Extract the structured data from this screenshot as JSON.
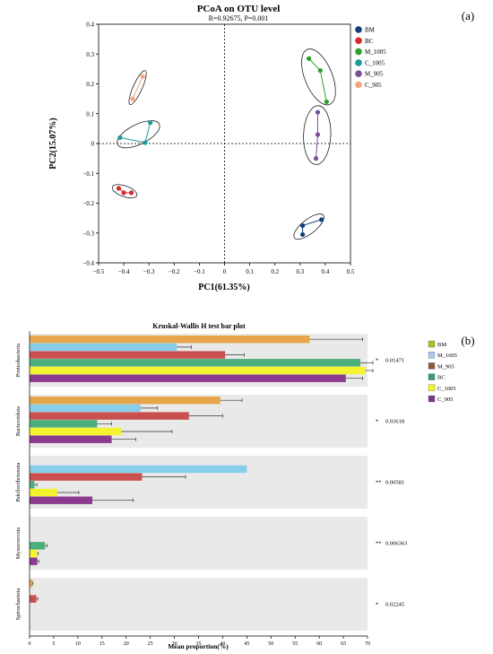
{
  "panel_a_label": "(a)",
  "panel_b_label": "(b)",
  "chart_data": [
    {
      "type": "scatter",
      "title": "PCoA on OTU level",
      "subtitle": "R=0.92675, P=0.001",
      "xlabel": "PC1(61.35%)",
      "ylabel": "PC2(15.07%)",
      "xlim": [
        -0.5,
        0.5
      ],
      "ylim": [
        -0.4,
        0.4
      ],
      "xticks": [
        "−0.5",
        "−0.4",
        "−0.3",
        "−0.2",
        "−0.1",
        "0",
        "0.1",
        "0.2",
        "0.3",
        "0.4",
        "0.5"
      ],
      "yticks": [
        "0.4",
        "0.3",
        "0.2",
        "0.1",
        "0",
        "−0.1",
        "−0.2",
        "−0.3",
        "−0.4"
      ],
      "legend_position": "right",
      "series": [
        {
          "name": "BM",
          "color": "#0d3d7a",
          "points": [
            [
              0.31,
              -0.305
            ],
            [
              0.31,
              -0.275
            ],
            [
              0.385,
              -0.255
            ]
          ]
        },
        {
          "name": "BC",
          "color": "#d42a2a",
          "points": [
            [
              -0.42,
              -0.15
            ],
            [
              -0.4,
              -0.165
            ],
            [
              -0.37,
              -0.165
            ]
          ]
        },
        {
          "name": "M_1005",
          "color": "#2ca02c",
          "points": [
            [
              0.335,
              0.285
            ],
            [
              0.38,
              0.245
            ],
            [
              0.405,
              0.14
            ]
          ]
        },
        {
          "name": "C_1005",
          "color": "#1a9a9a",
          "points": [
            [
              -0.415,
              0.02
            ],
            [
              -0.315,
              0.003
            ],
            [
              -0.295,
              0.07
            ]
          ]
        },
        {
          "name": "M_905",
          "color": "#7a4f9a",
          "points": [
            [
              0.37,
              0.105
            ],
            [
              0.37,
              0.03
            ],
            [
              0.363,
              -0.05
            ]
          ]
        },
        {
          "name": "C_905",
          "color": "#f4a582",
          "points": [
            [
              -0.365,
              0.15
            ],
            [
              -0.325,
              0.225
            ]
          ]
        }
      ]
    },
    {
      "type": "bar",
      "title": "Kruskal-Wallis H test bar plot",
      "xlabel": "Mean proportion(%)",
      "xlim": [
        0,
        70
      ],
      "xticks": [
        "0",
        "5",
        "10",
        "15",
        "20",
        "25",
        "30",
        "35",
        "40",
        "45",
        "50",
        "55",
        "60",
        "65",
        "70"
      ],
      "legend_position": "right",
      "series_meta": [
        {
          "name": "BM",
          "color": "#e8a64a"
        },
        {
          "name": "M_1005",
          "color": "#87ceeb"
        },
        {
          "name": "M_905",
          "color": "#c9504f"
        },
        {
          "name": "BC",
          "color": "#4cae7a"
        },
        {
          "name": "C_1005",
          "color": "#f3f32e"
        },
        {
          "name": "C_905",
          "color": "#8b3a8f"
        }
      ],
      "legend_entries": [
        {
          "name": "BM",
          "color": "#b8b82e"
        },
        {
          "name": "M_1005",
          "color": "#a9c8f0"
        },
        {
          "name": "M_905",
          "color": "#8b5a3c"
        },
        {
          "name": "BC",
          "color": "#3a9a7a"
        },
        {
          "name": "C_1005",
          "color": "#f3f32e"
        },
        {
          "name": "C_905",
          "color": "#7a3a8a"
        }
      ],
      "categories": [
        {
          "name": "Proteobacteria",
          "stars": "*",
          "pvalue": "0.01471",
          "values": [
            58,
            30.5,
            40.5,
            68.5,
            69.5,
            65.5
          ],
          "errors": [
            11,
            3,
            4,
            5,
            8,
            3.5
          ]
        },
        {
          "name": "Bacteroidota",
          "stars": "*",
          "pvalue": "0.03618",
          "values": [
            39.5,
            23,
            33,
            14,
            19,
            17
          ],
          "errors": [
            4.5,
            3.5,
            7,
            3,
            10.5,
            5
          ]
        },
        {
          "name": "Bdellovibrionota",
          "stars": "**",
          "pvalue": "0.00581",
          "values": [
            0,
            45,
            23.3,
            1,
            5.7,
            13
          ],
          "errors": [
            0,
            0,
            9,
            0.5,
            4.5,
            8.5
          ]
        },
        {
          "name": "Myxococcota",
          "stars": "**",
          "pvalue": "0.006363",
          "values": [
            0,
            0,
            0,
            3.2,
            1.6,
            1.6
          ],
          "errors": [
            0,
            0,
            0,
            0.4,
            0.2,
            0.3
          ]
        },
        {
          "name": "Spirochaetota",
          "stars": "*",
          "pvalue": "0.02245",
          "values": [
            0.6,
            0,
            1.4,
            0,
            0,
            0
          ],
          "errors": [
            0.1,
            0,
            0.3,
            0,
            0,
            0
          ]
        }
      ]
    }
  ]
}
